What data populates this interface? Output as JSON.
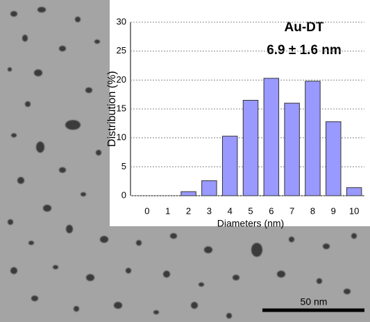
{
  "chart_data": {
    "type": "bar",
    "annotations": [
      "Au-DT",
      "6.9 ± 1.6 nm",
      "50 nm"
    ],
    "x_label": "Diameters (nm)",
    "y_label": "Distribution (%)",
    "categories": [
      "0",
      "1",
      "2",
      "3",
      "4",
      "5",
      "6",
      "7",
      "8",
      "9",
      "10"
    ],
    "values": [
      0,
      0,
      0.7,
      2.6,
      10.3,
      16.5,
      20.3,
      16,
      19.8,
      12.8,
      1.4
    ],
    "color": "#9999ff",
    "ylim": [
      0,
      30
    ],
    "yticks": [
      0,
      5,
      10,
      15,
      20,
      25,
      30
    ],
    "grid": true
  }
}
